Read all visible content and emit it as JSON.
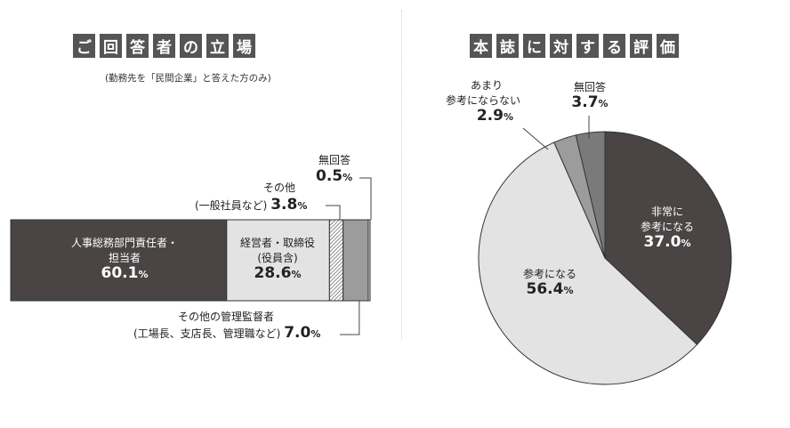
{
  "left": {
    "title_chars": [
      "ご",
      "回",
      "答",
      "者",
      "の",
      "立",
      "場"
    ],
    "note": "(勤務先を「民間企業」と答えた方のみ)"
  },
  "right": {
    "title_chars": [
      "本",
      "誌",
      "に",
      "対",
      "す",
      "る",
      "評",
      "価"
    ]
  },
  "colors": {
    "dark": "#4a4444",
    "light": "#e3e3e3",
    "mid": "#9c9c9c",
    "medgray": "#7a7a7a",
    "title_bg": "#555555"
  },
  "chart_data": [
    {
      "type": "bar",
      "orientation": "horizontal-stacked",
      "unit": "%",
      "segments": [
        {
          "name_lines": [
            "人事総務部門責任者・",
            "担当者"
          ],
          "value": 60.1,
          "value_text": "60.1"
        },
        {
          "name_lines": [
            "経営者・取締役",
            "(役員含)"
          ],
          "value": 28.6,
          "value_text": "28.6"
        },
        {
          "name_lines": [
            "その他",
            "(一般社員など)"
          ],
          "value": 3.8,
          "value_text": "3.8"
        },
        {
          "name_lines": [
            "その他の管理監督者",
            "(工場長、支店長、管理職など)"
          ],
          "value": 7.0,
          "value_text": "7.0"
        },
        {
          "name_lines": [
            "無回答"
          ],
          "value": 0.5,
          "value_text": "0.5"
        }
      ]
    },
    {
      "type": "pie",
      "unit": "%",
      "start": "12 o'clock, clockwise",
      "slices": [
        {
          "name_lines": [
            "非常に",
            "参考になる"
          ],
          "value": 37.0,
          "value_text": "37.0"
        },
        {
          "name_lines": [
            "参考になる"
          ],
          "value": 56.4,
          "value_text": "56.4"
        },
        {
          "name_lines": [
            "あまり",
            "参考にならない"
          ],
          "value": 2.9,
          "value_text": "2.9"
        },
        {
          "name_lines": [
            "無回答"
          ],
          "value": 3.7,
          "value_text": "3.7"
        }
      ]
    }
  ]
}
